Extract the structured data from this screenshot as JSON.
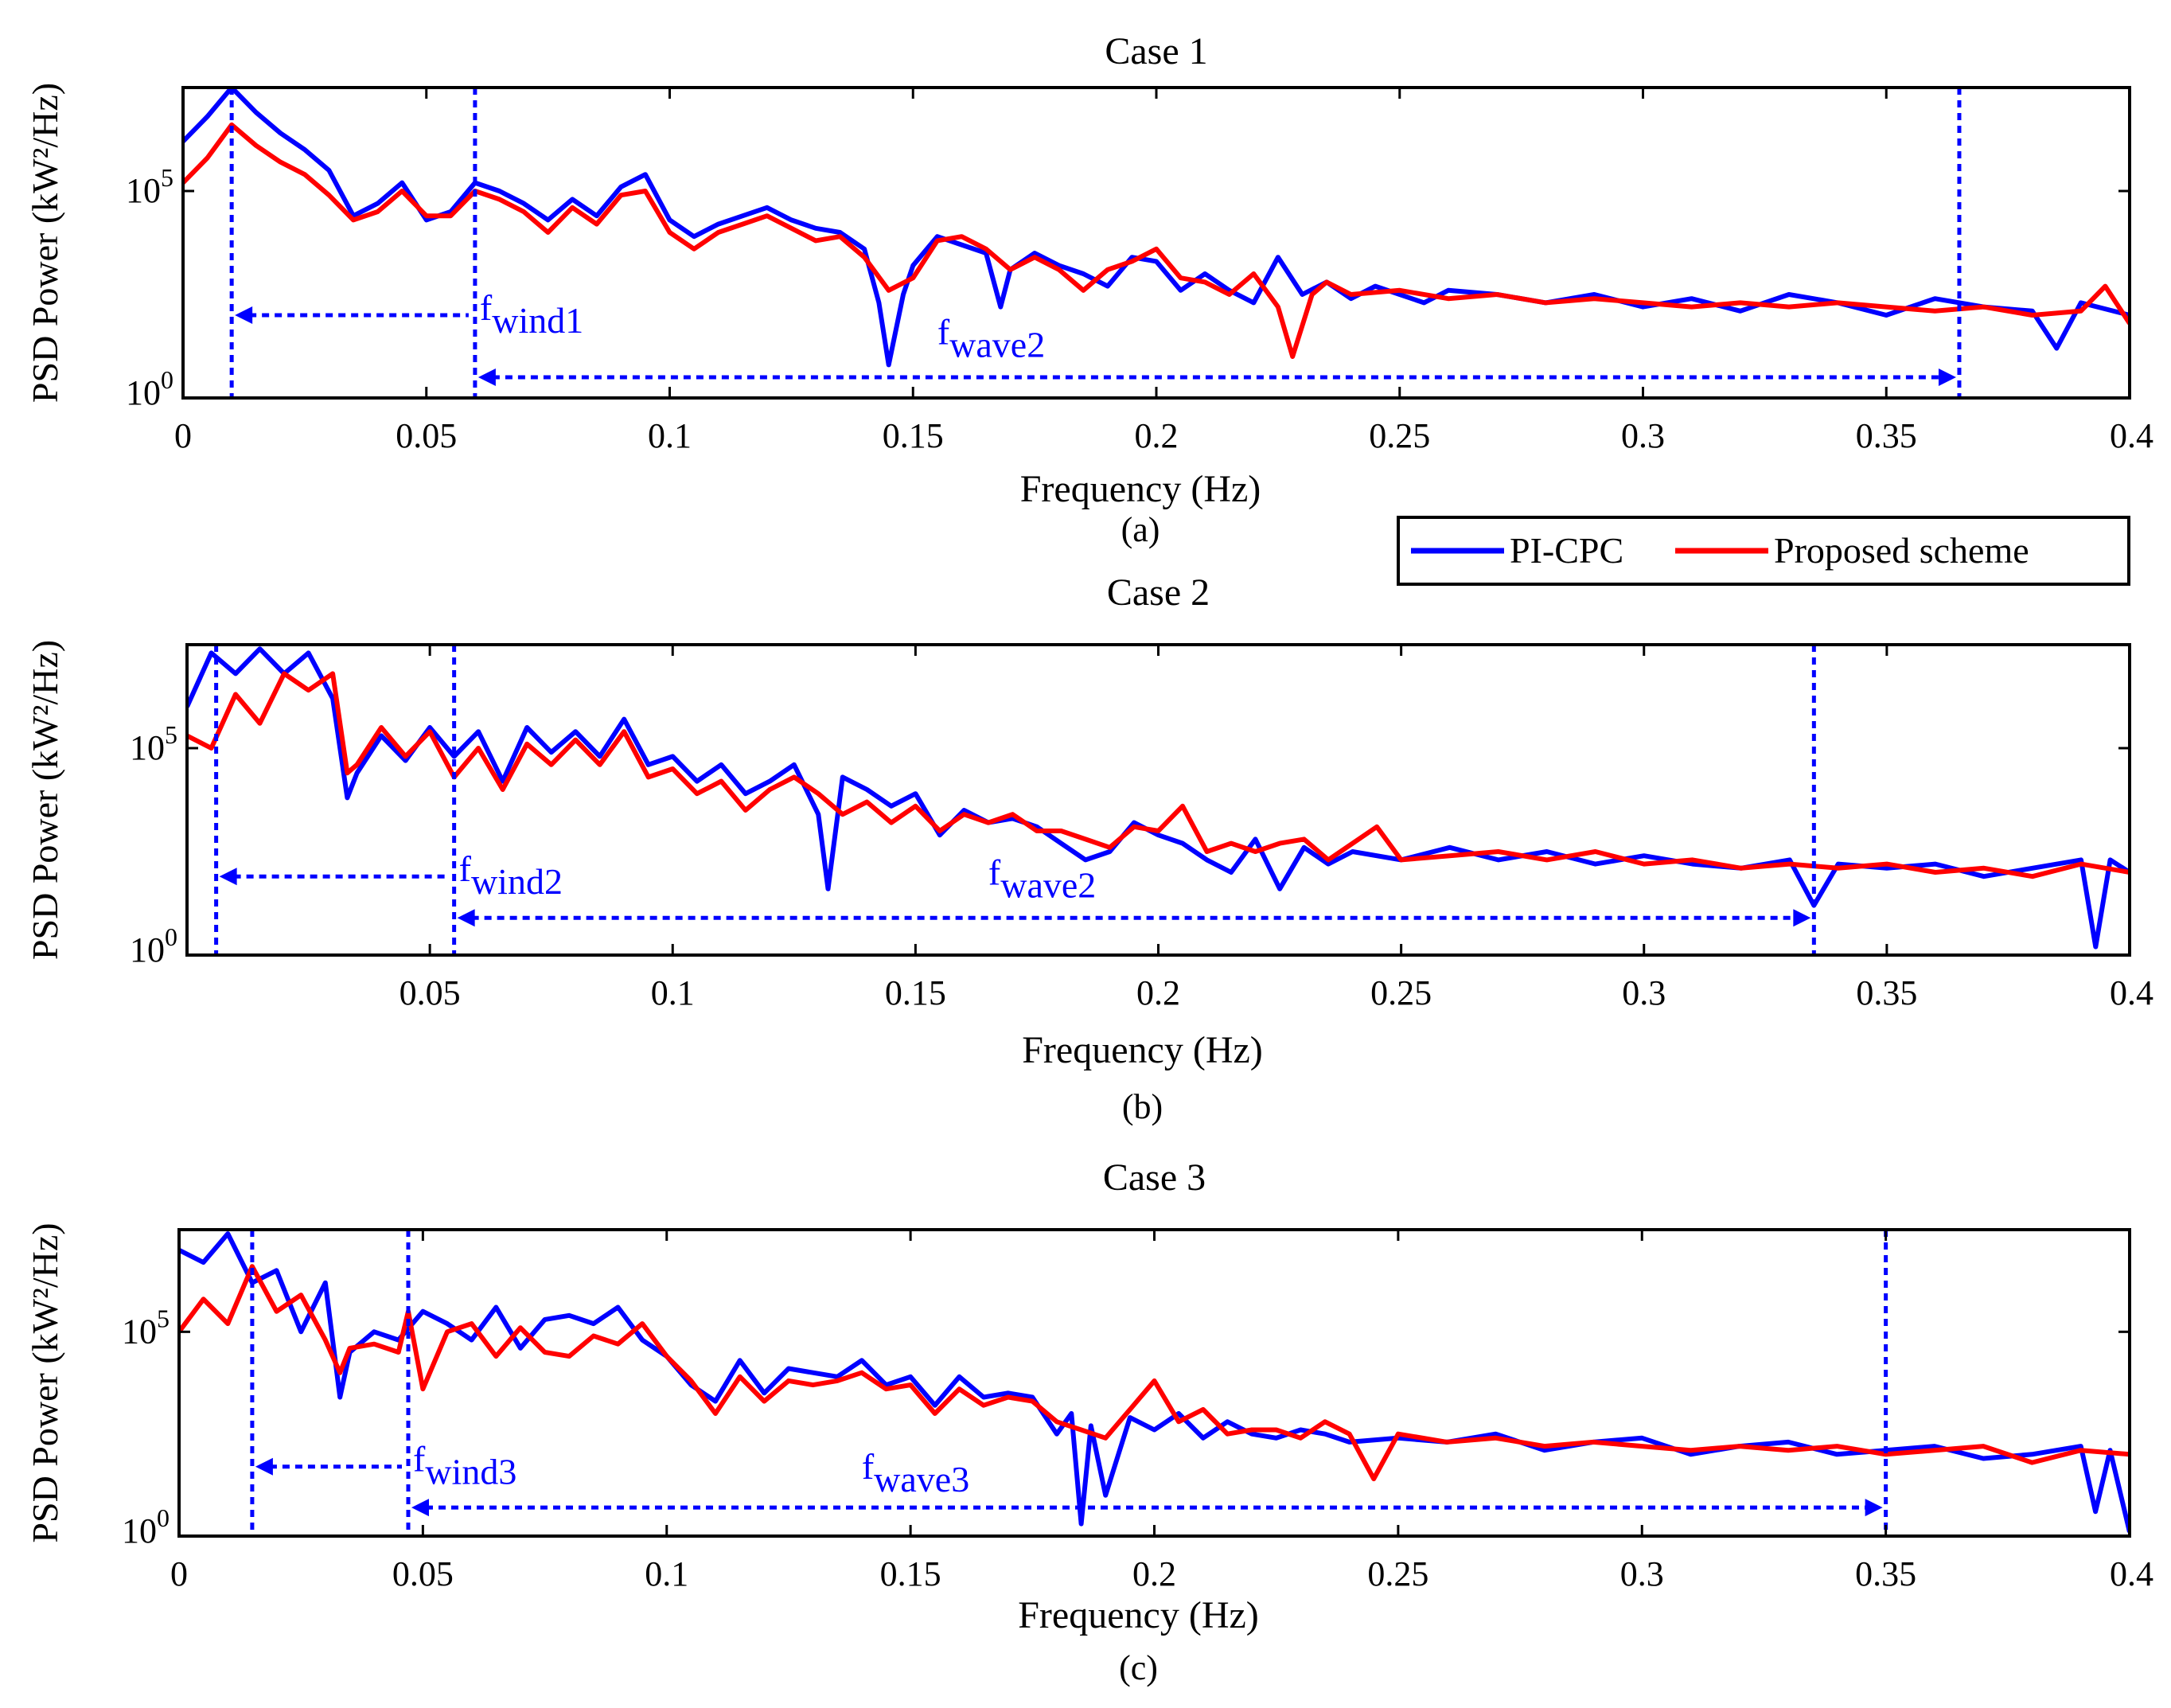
{
  "legend": {
    "entries": [
      {
        "label": "PI-CPC",
        "color": "#0000ff"
      },
      {
        "label": "Proposed scheme",
        "color": "#ff0000"
      }
    ]
  },
  "colors": {
    "pi_cpc": "#0000ff",
    "proposed": "#ff0000",
    "annotation": "#0000ff"
  },
  "chart_data": [
    {
      "type": "line",
      "title": "Case 1",
      "caption": "(a)",
      "xlabel": "Frequency (Hz)",
      "ylabel": "PSD Power (kW²/Hz)",
      "xlim": [
        0,
        0.4
      ],
      "yscale": "log",
      "ylim_exponent": [
        0,
        7.5
      ],
      "x_ticks": [
        "0",
        "0.05",
        "0.1",
        "0.15",
        "0.2",
        "0.25",
        "0.3",
        "0.35",
        "0.4"
      ],
      "y_ticks": [
        {
          "base": "10",
          "exp": "0"
        },
        {
          "base": "10",
          "exp": "5"
        }
      ],
      "annotations": [
        {
          "type": "vline",
          "x": 0.01
        },
        {
          "type": "vline",
          "x": 0.06
        },
        {
          "type": "vline",
          "x": 0.365
        },
        {
          "type": "arrow",
          "from": 0.01,
          "to": 0.06,
          "y_exp": 2.0,
          "label_base": "f",
          "label_sub": "wind1"
        },
        {
          "type": "arrow",
          "from": 0.06,
          "to": 0.365,
          "y_exp": 0.5,
          "label_base": "f",
          "label_sub": "wave2",
          "label_x": 0.155,
          "label_y_exp": 1.3
        }
      ],
      "series": [
        {
          "name": "PI-CPC",
          "x": [
            0,
            0.005,
            0.01,
            0.015,
            0.02,
            0.025,
            0.03,
            0.035,
            0.04,
            0.045,
            0.05,
            0.055,
            0.06,
            0.065,
            0.07,
            0.075,
            0.08,
            0.085,
            0.09,
            0.095,
            0.1,
            0.105,
            0.11,
            0.115,
            0.12,
            0.125,
            0.13,
            0.135,
            0.14,
            0.143,
            0.145,
            0.148,
            0.15,
            0.155,
            0.16,
            0.165,
            0.168,
            0.17,
            0.175,
            0.18,
            0.185,
            0.19,
            0.195,
            0.2,
            0.205,
            0.21,
            0.215,
            0.22,
            0.225,
            0.23,
            0.235,
            0.24,
            0.245,
            0.25,
            0.255,
            0.26,
            0.27,
            0.28,
            0.29,
            0.3,
            0.31,
            0.32,
            0.33,
            0.34,
            0.35,
            0.36,
            0.37,
            0.38,
            0.385,
            0.39,
            0.4
          ],
          "y_exp": [
            6.2,
            6.8,
            7.5,
            6.9,
            6.4,
            6.0,
            5.5,
            4.4,
            4.7,
            5.2,
            4.3,
            4.5,
            5.2,
            5.0,
            4.7,
            4.3,
            4.8,
            4.4,
            5.1,
            5.4,
            4.3,
            3.9,
            4.2,
            4.4,
            4.6,
            4.3,
            4.1,
            4.0,
            3.6,
            2.3,
            0.8,
            2.5,
            3.2,
            3.9,
            3.7,
            3.5,
            2.2,
            3.1,
            3.5,
            3.2,
            3.0,
            2.7,
            3.4,
            3.3,
            2.6,
            3.0,
            2.6,
            2.3,
            3.4,
            2.5,
            2.8,
            2.4,
            2.7,
            2.5,
            2.3,
            2.6,
            2.5,
            2.3,
            2.5,
            2.2,
            2.4,
            2.1,
            2.5,
            2.3,
            2.0,
            2.4,
            2.2,
            2.1,
            1.2,
            2.3,
            2.0
          ]
        },
        {
          "name": "Proposed scheme",
          "x": [
            0,
            0.005,
            0.01,
            0.015,
            0.02,
            0.025,
            0.03,
            0.035,
            0.04,
            0.045,
            0.05,
            0.055,
            0.06,
            0.065,
            0.07,
            0.075,
            0.08,
            0.085,
            0.09,
            0.095,
            0.1,
            0.105,
            0.11,
            0.115,
            0.12,
            0.125,
            0.13,
            0.135,
            0.14,
            0.145,
            0.15,
            0.155,
            0.16,
            0.165,
            0.17,
            0.175,
            0.18,
            0.185,
            0.19,
            0.195,
            0.2,
            0.205,
            0.21,
            0.215,
            0.22,
            0.225,
            0.228,
            0.232,
            0.235,
            0.24,
            0.25,
            0.26,
            0.27,
            0.28,
            0.29,
            0.3,
            0.31,
            0.32,
            0.33,
            0.34,
            0.35,
            0.36,
            0.37,
            0.38,
            0.39,
            0.395,
            0.4
          ],
          "y_exp": [
            5.2,
            5.8,
            6.6,
            6.1,
            5.7,
            5.4,
            4.9,
            4.3,
            4.5,
            5.0,
            4.4,
            4.4,
            5.0,
            4.8,
            4.5,
            4.0,
            4.6,
            4.2,
            4.9,
            5.0,
            4.0,
            3.6,
            4.0,
            4.2,
            4.4,
            4.1,
            3.8,
            3.9,
            3.4,
            2.6,
            2.9,
            3.8,
            3.9,
            3.6,
            3.1,
            3.4,
            3.1,
            2.6,
            3.1,
            3.3,
            3.6,
            2.9,
            2.8,
            2.5,
            3.0,
            2.2,
            1.0,
            2.5,
            2.8,
            2.5,
            2.6,
            2.4,
            2.5,
            2.3,
            2.4,
            2.3,
            2.2,
            2.3,
            2.2,
            2.3,
            2.2,
            2.1,
            2.2,
            2.0,
            2.1,
            2.7,
            1.8
          ]
        }
      ]
    },
    {
      "type": "line",
      "title": "Case 2",
      "caption": "(b)",
      "xlabel": "Frequency (Hz)",
      "ylabel": "PSD Power (kW²/Hz)",
      "xlim": [
        0,
        0.4
      ],
      "yscale": "log",
      "ylim_exponent": [
        0,
        7.5
      ],
      "x_ticks": [
        "0.05",
        "0.1",
        "0.15",
        "0.2",
        "0.25",
        "0.3",
        "0.35",
        "0.4"
      ],
      "y_ticks": [
        {
          "base": "10",
          "exp": "0"
        },
        {
          "base": "10",
          "exp": "5"
        }
      ],
      "annotations": [
        {
          "type": "vline",
          "x": 0.006
        },
        {
          "type": "vline",
          "x": 0.055
        },
        {
          "type": "vline",
          "x": 0.335
        },
        {
          "type": "arrow",
          "from": 0.006,
          "to": 0.055,
          "y_exp": 1.9,
          "label_base": "f",
          "label_sub": "wind2"
        },
        {
          "type": "arrow",
          "from": 0.055,
          "to": 0.335,
          "y_exp": 0.9,
          "label_base": "f",
          "label_sub": "wave2",
          "label_x": 0.165,
          "label_y_exp": 1.7
        }
      ],
      "series": [
        {
          "name": "PI-CPC",
          "x": [
            0,
            0.005,
            0.01,
            0.015,
            0.02,
            0.025,
            0.03,
            0.033,
            0.035,
            0.04,
            0.045,
            0.05,
            0.055,
            0.06,
            0.065,
            0.07,
            0.075,
            0.08,
            0.085,
            0.09,
            0.095,
            0.1,
            0.105,
            0.11,
            0.115,
            0.12,
            0.125,
            0.13,
            0.132,
            0.135,
            0.14,
            0.145,
            0.15,
            0.155,
            0.16,
            0.165,
            0.17,
            0.175,
            0.18,
            0.185,
            0.19,
            0.195,
            0.2,
            0.205,
            0.21,
            0.215,
            0.22,
            0.225,
            0.23,
            0.235,
            0.24,
            0.25,
            0.26,
            0.27,
            0.28,
            0.29,
            0.3,
            0.31,
            0.32,
            0.33,
            0.335,
            0.34,
            0.35,
            0.36,
            0.37,
            0.38,
            0.39,
            0.393,
            0.396,
            0.4
          ],
          "y_exp": [
            6.0,
            7.3,
            6.8,
            7.4,
            6.8,
            7.3,
            6.2,
            3.8,
            4.4,
            5.3,
            4.7,
            5.5,
            4.8,
            5.4,
            4.2,
            5.5,
            4.9,
            5.4,
            4.8,
            5.7,
            4.6,
            4.8,
            4.2,
            4.6,
            3.9,
            4.2,
            4.6,
            3.4,
            1.6,
            4.3,
            4.0,
            3.6,
            3.9,
            2.9,
            3.5,
            3.2,
            3.3,
            3.1,
            2.7,
            2.3,
            2.5,
            3.2,
            2.9,
            2.7,
            2.3,
            2.0,
            2.8,
            1.6,
            2.6,
            2.2,
            2.5,
            2.3,
            2.6,
            2.3,
            2.5,
            2.2,
            2.4,
            2.2,
            2.1,
            2.3,
            1.2,
            2.2,
            2.1,
            2.2,
            1.9,
            2.1,
            2.3,
            0.2,
            2.3,
            2.0
          ]
        },
        {
          "name": "Proposed scheme",
          "x": [
            0,
            0.005,
            0.01,
            0.015,
            0.02,
            0.025,
            0.03,
            0.033,
            0.035,
            0.04,
            0.045,
            0.05,
            0.055,
            0.06,
            0.065,
            0.07,
            0.075,
            0.08,
            0.085,
            0.09,
            0.095,
            0.1,
            0.105,
            0.11,
            0.115,
            0.12,
            0.125,
            0.13,
            0.135,
            0.14,
            0.145,
            0.15,
            0.155,
            0.16,
            0.165,
            0.17,
            0.175,
            0.18,
            0.185,
            0.19,
            0.195,
            0.2,
            0.205,
            0.21,
            0.215,
            0.22,
            0.225,
            0.23,
            0.235,
            0.24,
            0.245,
            0.25,
            0.26,
            0.27,
            0.28,
            0.29,
            0.3,
            0.31,
            0.32,
            0.33,
            0.34,
            0.35,
            0.36,
            0.37,
            0.38,
            0.39,
            0.4
          ],
          "y_exp": [
            5.3,
            5.0,
            6.3,
            5.6,
            6.8,
            6.4,
            6.8,
            4.4,
            4.6,
            5.5,
            4.8,
            5.4,
            4.3,
            5.0,
            4.0,
            5.1,
            4.6,
            5.2,
            4.6,
            5.4,
            4.3,
            4.5,
            3.9,
            4.2,
            3.5,
            4.0,
            4.3,
            3.9,
            3.4,
            3.7,
            3.2,
            3.6,
            3.0,
            3.4,
            3.2,
            3.4,
            3.0,
            3.0,
            2.8,
            2.6,
            3.1,
            3.0,
            3.6,
            2.5,
            2.7,
            2.5,
            2.7,
            2.8,
            2.3,
            2.7,
            3.1,
            2.3,
            2.4,
            2.5,
            2.3,
            2.5,
            2.2,
            2.3,
            2.1,
            2.2,
            2.1,
            2.2,
            2.0,
            2.1,
            1.9,
            2.2,
            2.0
          ]
        }
      ]
    },
    {
      "type": "line",
      "title": "Case 3",
      "caption": "(c)",
      "xlabel": "Frequency (Hz)",
      "ylabel": "PSD Power (kW²/Hz)",
      "xlim": [
        0,
        0.4
      ],
      "yscale": "log",
      "ylim_exponent": [
        0,
        7.5
      ],
      "x_ticks": [
        "0",
        "0.05",
        "0.1",
        "0.15",
        "0.2",
        "0.25",
        "0.3",
        "0.35",
        "0.4"
      ],
      "y_ticks": [
        {
          "base": "10",
          "exp": "0"
        },
        {
          "base": "10",
          "exp": "5"
        }
      ],
      "annotations": [
        {
          "type": "vline",
          "x": 0.015
        },
        {
          "type": "vline",
          "x": 0.047
        },
        {
          "type": "vline",
          "x": 0.35
        },
        {
          "type": "arrow",
          "from": 0.015,
          "to": 0.047,
          "y_exp": 1.7,
          "label_base": "f",
          "label_sub": "wind3"
        },
        {
          "type": "arrow",
          "from": 0.047,
          "to": 0.35,
          "y_exp": 0.7,
          "label_base": "f",
          "label_sub": "wave3",
          "label_x": 0.14,
          "label_y_exp": 1.4
        }
      ],
      "series": [
        {
          "name": "PI-CPC",
          "x": [
            0,
            0.005,
            0.01,
            0.015,
            0.02,
            0.025,
            0.03,
            0.033,
            0.035,
            0.04,
            0.045,
            0.05,
            0.055,
            0.06,
            0.065,
            0.07,
            0.075,
            0.08,
            0.085,
            0.09,
            0.095,
            0.1,
            0.105,
            0.11,
            0.115,
            0.12,
            0.125,
            0.13,
            0.135,
            0.14,
            0.145,
            0.15,
            0.155,
            0.16,
            0.165,
            0.17,
            0.175,
            0.18,
            0.183,
            0.185,
            0.187,
            0.19,
            0.195,
            0.2,
            0.205,
            0.21,
            0.215,
            0.22,
            0.225,
            0.23,
            0.235,
            0.24,
            0.25,
            0.26,
            0.27,
            0.28,
            0.29,
            0.3,
            0.31,
            0.32,
            0.33,
            0.34,
            0.35,
            0.36,
            0.37,
            0.38,
            0.39,
            0.393,
            0.396,
            0.4
          ],
          "y_exp": [
            7.0,
            6.7,
            7.4,
            6.2,
            6.5,
            5.0,
            6.2,
            3.4,
            4.5,
            5.0,
            4.8,
            5.5,
            5.2,
            4.8,
            5.6,
            4.6,
            5.3,
            5.4,
            5.2,
            5.6,
            4.8,
            4.4,
            3.7,
            3.3,
            4.3,
            3.5,
            4.1,
            4.0,
            3.9,
            4.3,
            3.7,
            3.9,
            3.2,
            3.9,
            3.4,
            3.5,
            3.4,
            2.5,
            3.0,
            0.3,
            2.7,
            1.0,
            2.9,
            2.6,
            3.0,
            2.4,
            2.8,
            2.5,
            2.4,
            2.6,
            2.5,
            2.3,
            2.4,
            2.3,
            2.5,
            2.1,
            2.3,
            2.4,
            2.0,
            2.2,
            2.3,
            2.0,
            2.1,
            2.2,
            1.9,
            2.0,
            2.2,
            0.6,
            2.1,
            0.1
          ]
        },
        {
          "name": "Proposed scheme",
          "x": [
            0,
            0.005,
            0.01,
            0.015,
            0.02,
            0.025,
            0.03,
            0.033,
            0.035,
            0.04,
            0.045,
            0.047,
            0.05,
            0.055,
            0.06,
            0.065,
            0.07,
            0.075,
            0.08,
            0.085,
            0.09,
            0.095,
            0.1,
            0.105,
            0.11,
            0.115,
            0.12,
            0.125,
            0.13,
            0.135,
            0.14,
            0.145,
            0.15,
            0.155,
            0.16,
            0.165,
            0.17,
            0.175,
            0.18,
            0.185,
            0.19,
            0.195,
            0.2,
            0.205,
            0.21,
            0.215,
            0.22,
            0.225,
            0.23,
            0.235,
            0.24,
            0.245,
            0.25,
            0.26,
            0.27,
            0.28,
            0.29,
            0.3,
            0.31,
            0.32,
            0.33,
            0.34,
            0.35,
            0.36,
            0.37,
            0.38,
            0.39,
            0.4
          ],
          "y_exp": [
            5.0,
            5.8,
            5.2,
            6.6,
            5.5,
            5.9,
            4.8,
            4.0,
            4.6,
            4.7,
            4.5,
            5.5,
            3.6,
            5.0,
            5.2,
            4.4,
            5.1,
            4.5,
            4.4,
            4.9,
            4.7,
            5.2,
            4.4,
            3.8,
            3.0,
            3.9,
            3.3,
            3.8,
            3.7,
            3.8,
            4.0,
            3.6,
            3.7,
            3.0,
            3.6,
            3.2,
            3.4,
            3.3,
            2.8,
            2.6,
            2.4,
            3.1,
            3.8,
            2.8,
            3.1,
            2.5,
            2.6,
            2.6,
            2.4,
            2.8,
            2.5,
            1.4,
            2.5,
            2.3,
            2.4,
            2.2,
            2.3,
            2.2,
            2.1,
            2.2,
            2.1,
            2.2,
            2.0,
            2.1,
            2.2,
            1.8,
            2.1,
            2.0
          ]
        }
      ]
    }
  ]
}
